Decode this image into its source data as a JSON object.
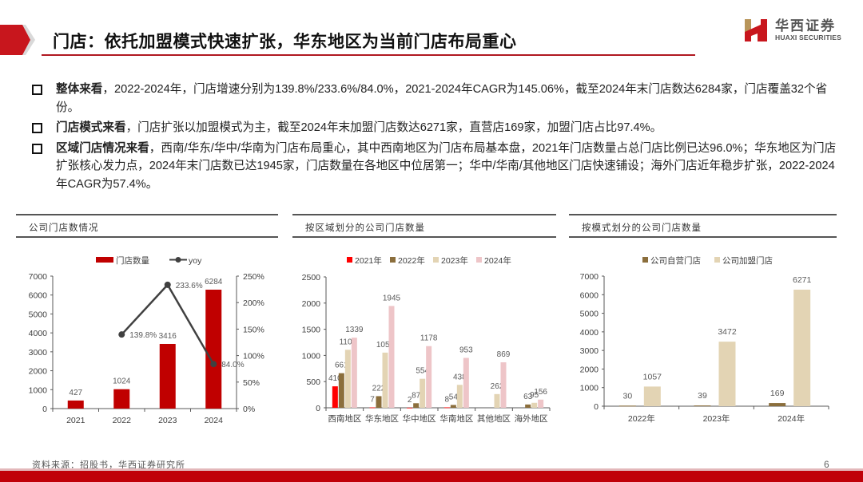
{
  "header": {
    "title": "门店：依托加盟模式快速扩张，华东地区为当前门店布局重心",
    "accent_color": "#c8161d"
  },
  "logo": {
    "name_cn": "华西证券",
    "name_en": "HUAXI SECURITIES",
    "icon": "huaxi-h-logo-icon"
  },
  "bullets": [
    {
      "heading": "整体来看",
      "text": "，2022-2024年，门店增速分别为139.8%/233.6%/84.0%，2021-2024年CAGR为145.06%，截至2024年末门店数达6284家，门店覆盖32个省份。"
    },
    {
      "heading": "门店模式来看",
      "text": "，门店扩张以加盟模式为主，截至2024年末加盟门店数达6271家，直营店169家，加盟门店占比97.4%。"
    },
    {
      "heading": "区域门店情况来看",
      "text": "，西南/华东/华中/华南为门店布局重心，其中西南地区为门店布局基本盘，2021年门店数量占总门店比例已达96.0%；华东地区为门店扩张核心发力点，2024年末门店数已达1945家，门店数量在各地区中位居第一；华中/华南/其他地区门店快速铺设；海外门店近年稳步扩张，2022-2024年CAGR为57.4%。"
    }
  ],
  "panels": [
    {
      "title": "公司门店数情况"
    },
    {
      "title": "按区域划分的公司门店数量"
    },
    {
      "title": "按模式划分的公司门店数量"
    }
  ],
  "chart_data": [
    {
      "type": "bar+line",
      "title": "公司门店数情况",
      "categories": [
        "2021",
        "2022",
        "2023",
        "2024"
      ],
      "series": [
        {
          "name": "门店数量",
          "type": "bar",
          "axis": "left",
          "color": "#c00000",
          "values": [
            427,
            1024,
            3416,
            6284
          ]
        },
        {
          "name": "yoy",
          "type": "line",
          "axis": "right",
          "color": "#404040",
          "values": [
            null,
            139.8,
            233.6,
            84.0
          ],
          "labels": [
            "",
            "139.8%",
            "233.6%",
            "84.0%"
          ]
        }
      ],
      "ylim": [
        0,
        7000
      ],
      "yticks": [
        0,
        1000,
        2000,
        3000,
        4000,
        5000,
        6000,
        7000
      ],
      "y2lim": [
        0,
        250
      ],
      "y2ticks": [
        "0%",
        "50%",
        "100%",
        "150%",
        "200%",
        "250%"
      ],
      "legend_position": "top"
    },
    {
      "type": "bar",
      "title": "按区域划分的公司门店数量",
      "categories": [
        "西南地区",
        "华东地区",
        "华中地区",
        "华南地区",
        "其他地区",
        "海外地区"
      ],
      "series": [
        {
          "name": "2021年",
          "color": "#ff0000",
          "values": [
            410,
            7,
            2,
            8,
            null,
            null
          ]
        },
        {
          "name": "2022年",
          "color": "#8b6e3c",
          "values": [
            661,
            222,
            87,
            54,
            null,
            63
          ]
        },
        {
          "name": "2023年",
          "color": "#e3d4b4",
          "values": [
            1108,
            1054,
            554,
            438,
            262,
            95
          ]
        },
        {
          "name": "2024年",
          "color": "#eec5c8",
          "values": [
            1339,
            1945,
            1178,
            953,
            869,
            156
          ]
        }
      ],
      "ylim": [
        0,
        2500
      ],
      "yticks": [
        0,
        500,
        1000,
        1500,
        2000,
        2500
      ],
      "legend_position": "top"
    },
    {
      "type": "bar",
      "title": "按模式划分的公司门店数量",
      "categories": [
        "2022年",
        "2023年",
        "2024年"
      ],
      "series": [
        {
          "name": "公司自营门店",
          "color": "#8b6e3c",
          "values": [
            30,
            39,
            169
          ]
        },
        {
          "name": "公司加盟门店",
          "color": "#e3d4b4",
          "values": [
            1057,
            3472,
            6271
          ]
        }
      ],
      "ylim": [
        0,
        7000
      ],
      "yticks": [
        0,
        1000,
        2000,
        3000,
        4000,
        5000,
        6000,
        7000
      ],
      "legend_position": "top"
    }
  ],
  "footer": {
    "source": "资料来源：招股书，华西证券研究所",
    "source_visible": "股书，华西证券研究所",
    "page_number": "6"
  }
}
